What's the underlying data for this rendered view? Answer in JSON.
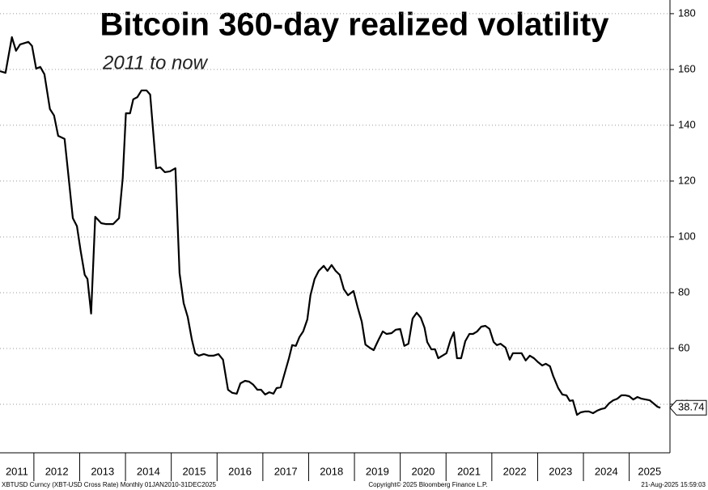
{
  "chart_data": {
    "type": "line",
    "title": "Bitcoin 360-day realized volatility",
    "subtitle": "2011 to now",
    "color": "#000000",
    "grid": true,
    "x": [
      2011.26,
      2011.38,
      2011.52,
      2011.61,
      2011.7,
      2011.88,
      2011.96,
      2012.05,
      2012.14,
      2012.23,
      2012.35,
      2012.44,
      2012.53,
      2012.67,
      2012.74,
      2012.85,
      2012.94,
      2013.02,
      2013.11,
      2013.17,
      2013.25,
      2013.34,
      2013.47,
      2013.57,
      2013.73,
      2013.86,
      2013.94,
      2014.01,
      2014.1,
      2014.17,
      2014.26,
      2014.35,
      2014.46,
      2014.54,
      2014.67,
      2014.76,
      2014.86,
      2014.97,
      2015.09,
      2015.18,
      2015.27,
      2015.36,
      2015.45,
      2015.52,
      2015.6,
      2015.71,
      2015.82,
      2015.92,
      2016.03,
      2016.13,
      2016.24,
      2016.33,
      2016.43,
      2016.51,
      2016.61,
      2016.7,
      2016.79,
      2016.88,
      2016.96,
      2017.05,
      2017.14,
      2017.23,
      2017.3,
      2017.39,
      2017.48,
      2017.57,
      2017.64,
      2017.72,
      2017.8,
      2017.88,
      2017.97,
      2018.04,
      2018.13,
      2018.22,
      2018.33,
      2018.41,
      2018.5,
      2018.59,
      2018.68,
      2018.77,
      2018.86,
      2018.98,
      2019.07,
      2019.16,
      2019.24,
      2019.33,
      2019.42,
      2019.53,
      2019.62,
      2019.7,
      2019.81,
      2019.9,
      2020.0,
      2020.09,
      2020.18,
      2020.27,
      2020.36,
      2020.45,
      2020.53,
      2020.59,
      2020.68,
      2020.76,
      2020.83,
      2020.92,
      2021.01,
      2021.1,
      2021.17,
      2021.24,
      2021.33,
      2021.42,
      2021.51,
      2021.59,
      2021.68,
      2021.77,
      2021.86,
      2021.95,
      2022.04,
      2022.11,
      2022.19,
      2022.3,
      2022.39,
      2022.46,
      2022.57,
      2022.65,
      2022.74,
      2022.83,
      2022.92,
      2023.01,
      2023.1,
      2023.18,
      2023.27,
      2023.34,
      2023.45,
      2023.54,
      2023.63,
      2023.7,
      2023.77,
      2023.86,
      2023.94,
      2024.03,
      2024.12,
      2024.21,
      2024.3,
      2024.39,
      2024.47,
      2024.56,
      2024.65,
      2024.74,
      2024.83,
      2024.92,
      2025.0,
      2025.09,
      2025.18,
      2025.27,
      2025.36,
      2025.45,
      2025.53,
      2025.62,
      2025.68
    ],
    "values": [
      159.4,
      158.8,
      171.6,
      166.7,
      169.0,
      169.9,
      168.4,
      160.3,
      160.9,
      158.3,
      145.8,
      143.5,
      136.2,
      135.1,
      124.1,
      106.7,
      103.8,
      95.1,
      86.4,
      84.9,
      72.5,
      107.2,
      104.9,
      104.6,
      104.6,
      106.7,
      121.2,
      144.3,
      144.3,
      149.3,
      150.1,
      152.5,
      152.5,
      151.0,
      124.6,
      124.9,
      123.2,
      123.5,
      124.6,
      87.0,
      76.2,
      71.3,
      63.2,
      58.3,
      57.4,
      58.0,
      57.4,
      57.4,
      58.0,
      56.0,
      45.2,
      44.1,
      43.8,
      47.5,
      48.4,
      48.1,
      47.0,
      45.2,
      45.2,
      43.5,
      44.3,
      43.8,
      45.8,
      46.1,
      51.3,
      56.5,
      61.2,
      60.9,
      64.1,
      66.1,
      70.4,
      79.1,
      84.9,
      87.8,
      89.6,
      87.8,
      89.9,
      87.8,
      86.4,
      81.2,
      79.1,
      80.6,
      74.8,
      69.6,
      61.4,
      60.3,
      59.4,
      63.2,
      66.1,
      65.2,
      65.5,
      66.7,
      67.0,
      60.9,
      61.7,
      70.7,
      72.8,
      71.0,
      67.5,
      62.3,
      59.7,
      59.7,
      56.5,
      57.4,
      58.3,
      63.2,
      65.8,
      56.5,
      56.5,
      62.6,
      65.2,
      65.2,
      66.1,
      67.8,
      68.1,
      67.0,
      62.3,
      61.2,
      61.7,
      60.3,
      56.0,
      58.3,
      58.3,
      58.3,
      55.7,
      57.4,
      56.5,
      55.1,
      53.9,
      54.5,
      53.6,
      50.1,
      45.8,
      43.5,
      43.2,
      41.2,
      41.4,
      36.2,
      37.1,
      37.4,
      37.4,
      36.8,
      37.7,
      38.3,
      38.6,
      40.3,
      41.4,
      42.0,
      43.2,
      43.2,
      42.9,
      41.7,
      42.6,
      42.0,
      41.7,
      41.4,
      40.3,
      39.1,
      38.74
    ],
    "last_value_label": "38.74",
    "xlim": [
      2011.26,
      2025.89
    ],
    "xticks": [
      2011,
      2012,
      2013,
      2014,
      2015,
      2016,
      2017,
      2018,
      2019,
      2020,
      2021,
      2022,
      2023,
      2024,
      2025
    ],
    "ylim": [
      22.6,
      184.9
    ],
    "yticks": [
      40,
      60,
      80,
      100,
      120,
      140,
      160,
      180
    ]
  },
  "footer": {
    "source": "XBTUSD Curncy (XBT-USD Cross Rate)  Monthly 01JAN2010-31DEC2025",
    "copyright": "Copyright© 2025 Bloomberg Finance L.P.",
    "timestamp": "21-Aug-2025 15:59:03"
  }
}
